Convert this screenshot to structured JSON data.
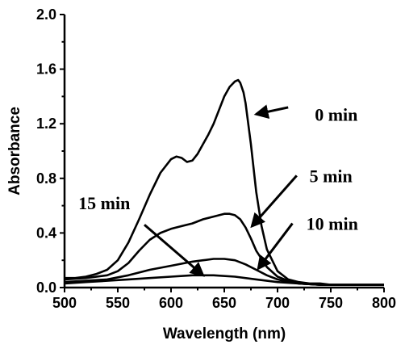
{
  "chart_data": {
    "type": "line",
    "xlabel": "Wavelength (nm)",
    "ylabel": "Absorbance",
    "xlim": [
      500,
      800
    ],
    "ylim": [
      0.0,
      2.0
    ],
    "x_ticks": [
      "500",
      "550",
      "600",
      "650",
      "700",
      "750",
      "800"
    ],
    "y_ticks": [
      "0.0",
      "0.4",
      "0.8",
      "1.2",
      "1.6",
      "2.0"
    ],
    "grid": false,
    "series": [
      {
        "name": "0 min",
        "x": [
          500,
          510,
          520,
          530,
          540,
          550,
          560,
          570,
          580,
          590,
          600,
          605,
          610,
          615,
          620,
          625,
          630,
          635,
          640,
          645,
          650,
          655,
          660,
          663,
          665,
          668,
          670,
          675,
          680,
          685,
          690,
          700,
          710,
          720,
          730,
          740,
          750,
          760,
          780,
          800
        ],
        "y": [
          0.07,
          0.07,
          0.08,
          0.1,
          0.13,
          0.2,
          0.33,
          0.5,
          0.68,
          0.84,
          0.94,
          0.96,
          0.95,
          0.92,
          0.93,
          0.98,
          1.05,
          1.12,
          1.2,
          1.3,
          1.4,
          1.47,
          1.51,
          1.52,
          1.5,
          1.43,
          1.35,
          1.05,
          0.7,
          0.45,
          0.28,
          0.12,
          0.06,
          0.04,
          0.03,
          0.03,
          0.02,
          0.02,
          0.02,
          0.02
        ]
      },
      {
        "name": "5 min",
        "x": [
          500,
          520,
          540,
          550,
          560,
          570,
          580,
          590,
          600,
          610,
          620,
          630,
          640,
          650,
          655,
          660,
          665,
          670,
          675,
          680,
          690,
          700,
          710,
          720,
          740,
          760,
          780,
          800
        ],
        "y": [
          0.06,
          0.07,
          0.09,
          0.12,
          0.18,
          0.27,
          0.35,
          0.4,
          0.43,
          0.45,
          0.47,
          0.5,
          0.52,
          0.54,
          0.54,
          0.53,
          0.5,
          0.44,
          0.36,
          0.27,
          0.15,
          0.08,
          0.05,
          0.03,
          0.02,
          0.02,
          0.02,
          0.02
        ]
      },
      {
        "name": "10 min",
        "x": [
          500,
          520,
          540,
          560,
          580,
          600,
          620,
          630,
          640,
          650,
          660,
          670,
          680,
          690,
          700,
          710,
          720,
          740,
          760,
          780,
          800
        ],
        "y": [
          0.04,
          0.05,
          0.06,
          0.09,
          0.13,
          0.16,
          0.19,
          0.2,
          0.21,
          0.21,
          0.2,
          0.17,
          0.13,
          0.09,
          0.06,
          0.04,
          0.03,
          0.02,
          0.02,
          0.02,
          0.02
        ]
      },
      {
        "name": "15 min",
        "x": [
          500,
          520,
          540,
          560,
          580,
          600,
          620,
          640,
          660,
          680,
          700,
          720,
          740,
          760,
          780,
          800
        ],
        "y": [
          0.03,
          0.04,
          0.05,
          0.06,
          0.07,
          0.08,
          0.09,
          0.09,
          0.08,
          0.06,
          0.04,
          0.03,
          0.02,
          0.02,
          0.02,
          0.02
        ]
      }
    ],
    "annotations": [
      {
        "text": "0 min",
        "label_x": 735,
        "label_y": 1.27,
        "arrow_from": [
          710,
          1.32
        ],
        "arrow_to": [
          680,
          1.27
        ]
      },
      {
        "text": "5 min",
        "label_x": 730,
        "label_y": 0.82,
        "arrow_from": [
          718,
          0.82
        ],
        "arrow_to": [
          676,
          0.45
        ]
      },
      {
        "text": "10 min",
        "label_x": 727,
        "label_y": 0.47,
        "arrow_from": [
          714,
          0.47
        ],
        "arrow_to": [
          682,
          0.14
        ]
      },
      {
        "text": "15 min",
        "label_x": 513,
        "label_y": 0.62,
        "arrow_from": [
          575,
          0.46
        ],
        "arrow_to": [
          630,
          0.09
        ]
      }
    ]
  }
}
